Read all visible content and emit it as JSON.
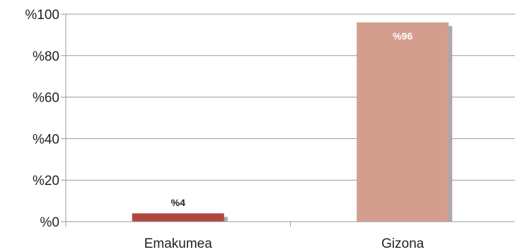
{
  "chart_data": {
    "type": "bar",
    "categories": [
      "Emakumea",
      "Gizona"
    ],
    "values": [
      4,
      96
    ],
    "data_labels": [
      "%4",
      "%96"
    ],
    "bar_colors": [
      "#b0473f",
      "#d49e8e"
    ],
    "data_label_colors": [
      "#222222",
      "#ffffff"
    ],
    "shadow_color": "#a8a8b0",
    "ylim": [
      0,
      100
    ],
    "yticks": [
      0,
      20,
      40,
      60,
      80,
      100
    ],
    "ytick_labels": [
      "%0",
      "%20",
      "%40",
      "%60",
      "%80",
      "%100"
    ],
    "title": "",
    "xlabel": "",
    "ylabel": "",
    "grid": "horizontal",
    "legend": false
  }
}
